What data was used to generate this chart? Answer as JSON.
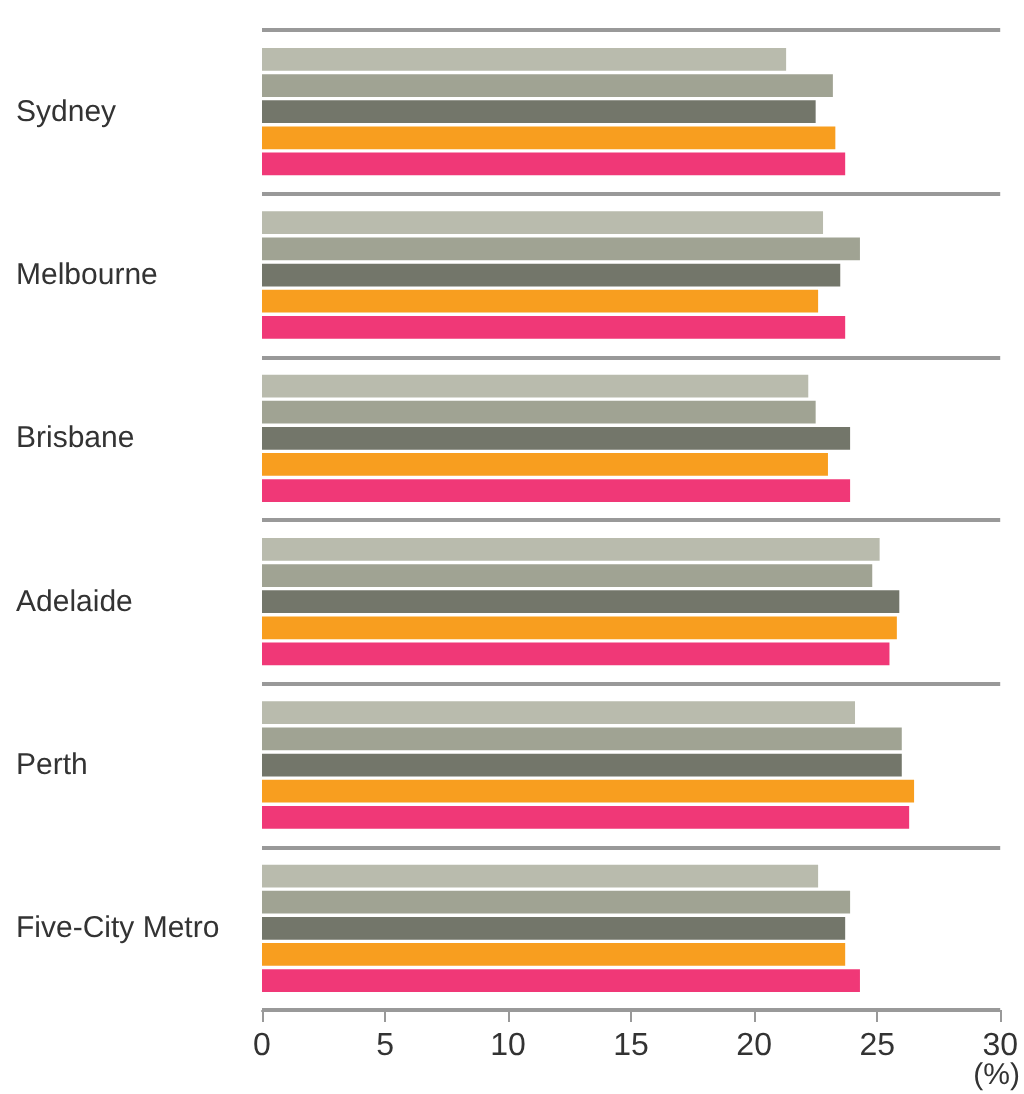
{
  "chart_data": {
    "type": "bar",
    "orientation": "horizontal",
    "xlabel": "(%)",
    "categories": [
      "Sydney",
      "Melbourne",
      "Brisbane",
      "Adelaide",
      "Perth",
      "Five-City Metro"
    ],
    "series": [
      {
        "color": "#b9bbad",
        "values": [
          21.3,
          22.8,
          22.2,
          25.1,
          24.1,
          22.6
        ]
      },
      {
        "color": "#a0a393",
        "values": [
          23.2,
          24.3,
          22.5,
          24.8,
          26.0,
          23.9
        ]
      },
      {
        "color": "#73766a",
        "values": [
          22.5,
          23.5,
          23.9,
          25.9,
          26.0,
          23.7
        ]
      },
      {
        "color": "#f89e1f",
        "values": [
          23.3,
          22.6,
          23.0,
          25.8,
          26.5,
          23.7
        ]
      },
      {
        "color": "#f03877",
        "values": [
          23.7,
          23.7,
          23.9,
          25.5,
          26.3,
          24.3
        ]
      }
    ],
    "xlim": [
      0,
      30
    ],
    "xticks": [
      0,
      5,
      10,
      15,
      20,
      25,
      30
    ],
    "grid": "y"
  }
}
